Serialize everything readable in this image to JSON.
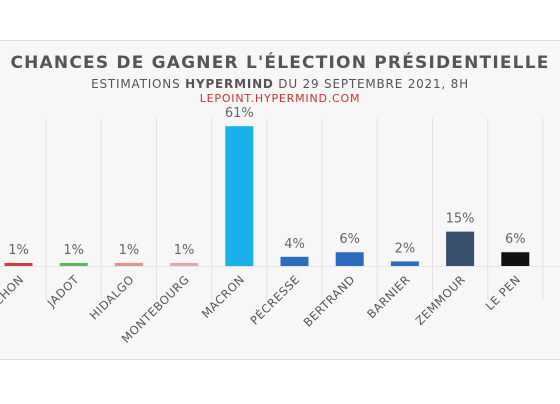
{
  "header": {
    "title": "CHANCES DE GAGNER L'ÉLECTION PRÉSIDENTIELLE",
    "subtitle_pre": "ESTIMATIONS ",
    "subtitle_brand": "HYPERMIND",
    "subtitle_post": " DU 29 SEPTEMBRE 2021, 8H",
    "source": "LEPOINT.HYPERMIND.COM"
  },
  "chart_data": {
    "type": "bar",
    "categories": [
      "MELENCHON",
      "JADOT",
      "HIDALGO",
      "MONTEBOURG",
      "MACRON",
      "PÉCRESSE",
      "BERTRAND",
      "BARNIER",
      "ZEMMOUR",
      "LE PEN"
    ],
    "values": [
      1,
      1,
      1,
      1,
      61,
      4,
      6,
      2,
      15,
      6
    ],
    "value_labels": [
      "1%",
      "1%",
      "1%",
      "1%",
      "61%",
      "4%",
      "6%",
      "2%",
      "15%",
      "6%"
    ],
    "colors": [
      "#e2373b",
      "#5cb85c",
      "#f08c8c",
      "#f0a0a8",
      "#1ab0ec",
      "#2a6cc0",
      "#2a6cc0",
      "#2a6cc0",
      "#37506e",
      "#111111"
    ],
    "title": "CHANCES DE GAGNER L'ÉLECTION PRÉSIDENTIELLE",
    "xlabel": "",
    "ylabel": "",
    "ylim": [
      0,
      65
    ],
    "grid": false,
    "legend": "none"
  }
}
